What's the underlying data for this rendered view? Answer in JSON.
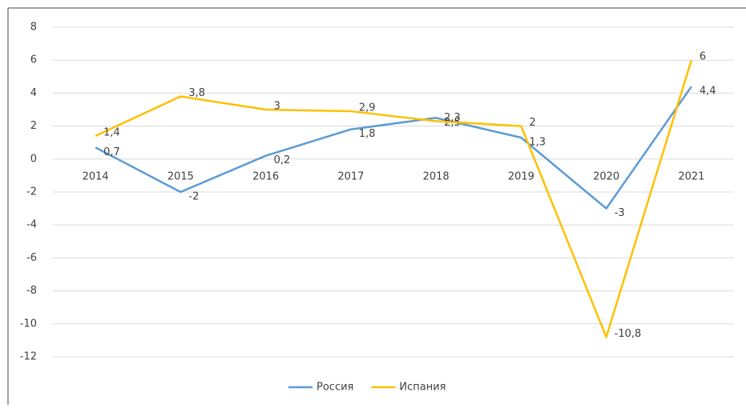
{
  "chart_data": {
    "type": "line",
    "categories": [
      "2014",
      "2015",
      "2016",
      "2017",
      "2018",
      "2019",
      "2020",
      "2021"
    ],
    "series": [
      {
        "name": "Россия",
        "color": "#5b9bd5",
        "values": [
          0.7,
          -2,
          0.2,
          1.8,
          2.5,
          1.3,
          -3,
          4.4
        ],
        "value_labels": [
          "0,7",
          "-2",
          "0,2",
          "1,8",
          "2,5",
          "1,3",
          "-3",
          "4,4"
        ]
      },
      {
        "name": "Испания",
        "color": "#ffc000",
        "values": [
          1.4,
          3.8,
          3,
          2.9,
          2.3,
          2,
          -10.8,
          6
        ],
        "value_labels": [
          "1,4",
          "3,8",
          "3",
          "2,9",
          "2,3",
          "2",
          "-10,8",
          "6"
        ]
      }
    ],
    "ylim": [
      -12,
      8
    ],
    "yticks": [
      -12,
      -10,
      -8,
      -6,
      -4,
      -2,
      0,
      2,
      4,
      6,
      8
    ],
    "grid": true,
    "legend": "bottom"
  }
}
